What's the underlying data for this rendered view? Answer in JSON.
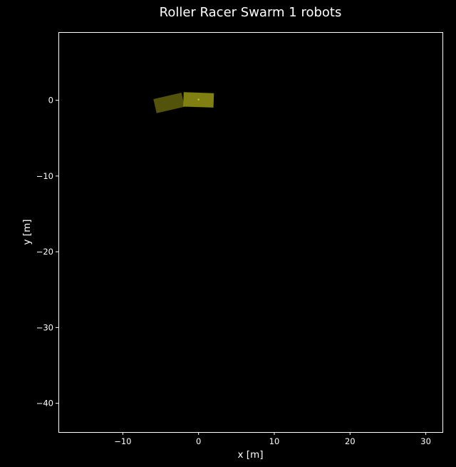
{
  "chart_data": {
    "type": "scatter",
    "title": "Roller Racer Swarm 1 robots",
    "xlabel": "x [m]",
    "ylabel": "y [m]",
    "xlim": [
      -18.5,
      32.2
    ],
    "ylim": [
      -43.8,
      9.0
    ],
    "xticks": [
      -10,
      0,
      10,
      20,
      30
    ],
    "yticks": [
      0,
      -10,
      -20,
      -30,
      -40
    ],
    "xtick_labels": [
      "−10",
      "0",
      "10",
      "20",
      "30"
    ],
    "ytick_labels": [
      "0",
      "−10",
      "−20",
      "−30",
      "−40"
    ],
    "grid": false,
    "background_color": "#000000",
    "axes_color": "#ffffff",
    "robots": [
      {
        "color_front": "#8a8a14",
        "color_rear": "#5a5a0c",
        "front_body": {
          "center": [
            0.0,
            0.05
          ],
          "length": 4.0,
          "width": 1.9,
          "angle_deg": -2
        },
        "rear_body": {
          "center": [
            -3.9,
            -0.35
          ],
          "length": 3.8,
          "width": 1.9,
          "angle_deg": 13
        },
        "marker": [
          0.0,
          0.1
        ]
      }
    ]
  }
}
